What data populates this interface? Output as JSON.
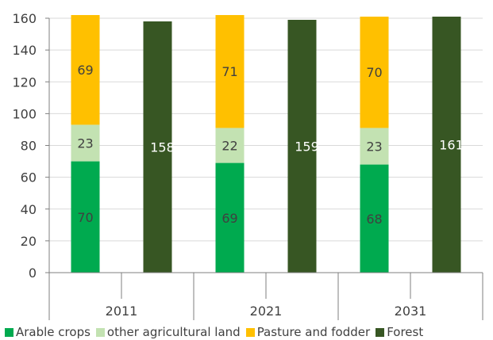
{
  "chart_data": {
    "type": "bar",
    "stacked": true,
    "categories": [
      "2011",
      "2021",
      "2031"
    ],
    "ylim": [
      0,
      160
    ],
    "yticks": [
      "0",
      "20",
      "40",
      "60",
      "80",
      "100",
      "120",
      "140",
      "160"
    ],
    "grid": true,
    "legend_position": "bottom",
    "series": [
      {
        "name": "Arable crops",
        "stack": "agricultural",
        "color": "#00aa4f",
        "values": [
          70,
          69,
          68
        ],
        "labels": [
          "70",
          "69",
          "68"
        ]
      },
      {
        "name": "other agricultural land",
        "stack": "agricultural",
        "color": "#c3e2b2",
        "values": [
          23,
          22,
          23
        ],
        "labels": [
          "23",
          "22",
          "23"
        ]
      },
      {
        "name": "Pasture and fodder",
        "stack": "agricultural",
        "color": "#ffc000",
        "values": [
          69,
          71,
          70
        ],
        "labels": [
          "69",
          "71",
          "70"
        ]
      },
      {
        "name": "Forest",
        "stack": "forest",
        "color": "#375623",
        "values": [
          158,
          159,
          161
        ],
        "labels": [
          "158",
          "159",
          "161"
        ]
      }
    ]
  }
}
